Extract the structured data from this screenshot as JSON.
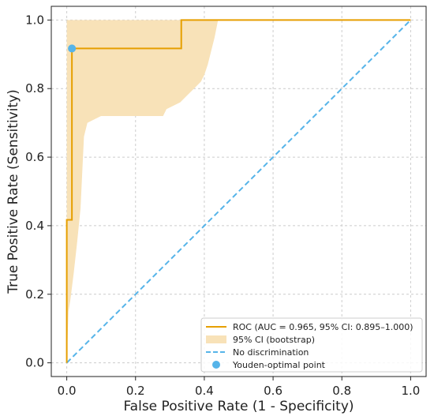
{
  "chart_data": {
    "type": "line",
    "title": "",
    "xlabel": "False Positive Rate (1 - Specificity)",
    "ylabel": "True Positive Rate (Sensitivity)",
    "xlim": [
      0,
      1
    ],
    "ylim": [
      0,
      1
    ],
    "grid": true,
    "legend_position": "bottom-right",
    "x_ticks": [
      0.0,
      0.2,
      0.4,
      0.6,
      0.8,
      1.0
    ],
    "y_ticks": [
      0.0,
      0.2,
      0.4,
      0.6,
      0.8,
      1.0
    ],
    "x_tick_labels": [
      "0.0",
      "0.2",
      "0.4",
      "0.6",
      "0.8",
      "1.0"
    ],
    "y_tick_labels": [
      "0.0",
      "0.2",
      "0.4",
      "0.6",
      "0.8",
      "1.0"
    ],
    "series": [
      {
        "name": "ROC (AUC = 0.965, 95% CI: 0.895–1.000)",
        "kind": "step-line",
        "color": "#e69f00",
        "x": [
          0.0,
          0.0,
          0.015,
          0.015,
          0.333,
          0.333,
          1.0
        ],
        "y": [
          0.0,
          0.417,
          0.417,
          0.917,
          0.917,
          1.0,
          1.0
        ]
      },
      {
        "name": "95% CI (bootstrap)",
        "kind": "band",
        "color": "#f8e2b8",
        "x": [
          0.0,
          0.005,
          0.01,
          0.02,
          0.03,
          0.04,
          0.05,
          0.06,
          0.08,
          0.1,
          0.2,
          0.28,
          0.29,
          0.33,
          0.35,
          0.37,
          0.39,
          0.4,
          0.41,
          0.42,
          0.43,
          0.44,
          1.0
        ],
        "lower": [
          0.0,
          0.15,
          0.18,
          0.26,
          0.35,
          0.45,
          0.66,
          0.7,
          0.71,
          0.72,
          0.72,
          0.72,
          0.74,
          0.76,
          0.78,
          0.8,
          0.82,
          0.84,
          0.87,
          0.91,
          0.95,
          1.0,
          1.0
        ],
        "upper": [
          1.0,
          1.0,
          1.0,
          1.0,
          1.0,
          1.0,
          1.0,
          1.0,
          1.0,
          1.0,
          1.0,
          1.0,
          1.0,
          1.0,
          1.0,
          1.0,
          1.0,
          1.0,
          1.0,
          1.0,
          1.0,
          1.0,
          1.0
        ]
      },
      {
        "name": "No discrimination",
        "kind": "dashed-line",
        "color": "#56b4e9",
        "x": [
          0.0,
          1.0
        ],
        "y": [
          0.0,
          1.0
        ]
      },
      {
        "name": "Youden-optimal point",
        "kind": "point",
        "color": "#56b4e9",
        "x": [
          0.015
        ],
        "y": [
          0.917
        ]
      }
    ]
  }
}
